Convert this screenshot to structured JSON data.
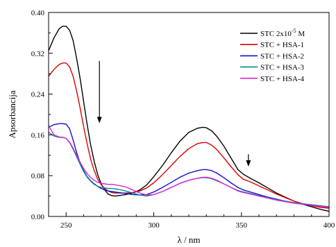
{
  "chart_data": {
    "type": "line",
    "xlabel": "λ / nm",
    "ylabel": "Apsorbancija",
    "xlim": [
      240,
      400
    ],
    "ylim": [
      0.0,
      0.4
    ],
    "xticks": [
      250,
      300,
      350,
      400
    ],
    "xtick_labels": [
      "250",
      "300",
      "350",
      "400"
    ],
    "yticks": [
      0.0,
      0.08,
      0.16,
      0.24,
      0.32,
      0.4
    ],
    "ytick_labels": [
      "0.00",
      "0.08",
      "0.16",
      "0.24",
      "0.32",
      "0.40"
    ],
    "grid": false,
    "legend_position": "top-right",
    "arrows": [
      {
        "x": 269,
        "y_from": 0.305,
        "y_to": 0.183,
        "direction": "down"
      },
      {
        "x": 354,
        "y_from": 0.122,
        "y_to": 0.098,
        "direction": "down"
      }
    ],
    "series": [
      {
        "name": "STC 2x10-5 M",
        "name_main": "STC 2x10",
        "name_sup": "-5",
        "name_tail": " M",
        "color": "#000000",
        "x": [
          240,
          243,
          246,
          248,
          250,
          252,
          254,
          256,
          258,
          260,
          262,
          264,
          266,
          268,
          270,
          272,
          274,
          276,
          278,
          280,
          284,
          288,
          292,
          296,
          300,
          305,
          310,
          315,
          320,
          325,
          328,
          330,
          333,
          336,
          340,
          344,
          348,
          351,
          355,
          360,
          365,
          370,
          375,
          380,
          385,
          390,
          395,
          400
        ],
        "y": [
          0.325,
          0.35,
          0.368,
          0.373,
          0.373,
          0.365,
          0.345,
          0.31,
          0.27,
          0.225,
          0.18,
          0.14,
          0.108,
          0.082,
          0.064,
          0.052,
          0.044,
          0.041,
          0.04,
          0.041,
          0.043,
          0.046,
          0.052,
          0.062,
          0.078,
          0.1,
          0.125,
          0.148,
          0.165,
          0.173,
          0.175,
          0.174,
          0.168,
          0.157,
          0.138,
          0.115,
          0.092,
          0.083,
          0.075,
          0.066,
          0.056,
          0.046,
          0.038,
          0.03,
          0.024,
          0.019,
          0.014,
          0.01
        ]
      },
      {
        "name": "STC + HSA-1",
        "color": "#e00000",
        "x": [
          240,
          243,
          246,
          248,
          250,
          252,
          254,
          256,
          258,
          260,
          262,
          264,
          266,
          268,
          270,
          272,
          274,
          276,
          278,
          280,
          284,
          288,
          292,
          296,
          300,
          305,
          310,
          315,
          320,
          325,
          328,
          330,
          333,
          336,
          340,
          344,
          348,
          351,
          355,
          360,
          365,
          370,
          375,
          380,
          385,
          390,
          395,
          400
        ],
        "y": [
          0.275,
          0.288,
          0.298,
          0.301,
          0.301,
          0.293,
          0.275,
          0.246,
          0.212,
          0.176,
          0.142,
          0.112,
          0.09,
          0.073,
          0.062,
          0.055,
          0.05,
          0.047,
          0.046,
          0.046,
          0.046,
          0.047,
          0.05,
          0.056,
          0.066,
          0.082,
          0.1,
          0.118,
          0.133,
          0.143,
          0.145,
          0.145,
          0.14,
          0.131,
          0.115,
          0.098,
          0.082,
          0.073,
          0.068,
          0.06,
          0.052,
          0.044,
          0.037,
          0.03,
          0.025,
          0.021,
          0.018,
          0.016
        ]
      },
      {
        "name": "STC + HSA-2",
        "color": "#1010cc",
        "x": [
          240,
          243,
          246,
          248,
          250,
          252,
          254,
          256,
          258,
          260,
          262,
          264,
          266,
          268,
          270,
          272,
          274,
          276,
          278,
          280,
          284,
          288,
          292,
          296,
          300,
          305,
          310,
          315,
          320,
          325,
          328,
          330,
          333,
          336,
          340,
          344,
          348,
          351,
          355,
          360,
          365,
          370,
          375,
          380,
          385,
          390,
          395,
          400
        ],
        "y": [
          0.175,
          0.18,
          0.182,
          0.182,
          0.181,
          0.172,
          0.15,
          0.125,
          0.105,
          0.09,
          0.078,
          0.07,
          0.064,
          0.059,
          0.055,
          0.052,
          0.05,
          0.049,
          0.048,
          0.047,
          0.045,
          0.043,
          0.042,
          0.043,
          0.048,
          0.057,
          0.067,
          0.077,
          0.085,
          0.09,
          0.092,
          0.092,
          0.09,
          0.085,
          0.076,
          0.066,
          0.057,
          0.052,
          0.048,
          0.043,
          0.038,
          0.034,
          0.03,
          0.027,
          0.024,
          0.022,
          0.02,
          0.018
        ]
      },
      {
        "name": "STC + HSA-3",
        "color": "#008b8b",
        "x": [
          240,
          243,
          246,
          248,
          250,
          252,
          254,
          256,
          258,
          260,
          262,
          264,
          266,
          268,
          270,
          272,
          274,
          276,
          278,
          280,
          284,
          288,
          292,
          296,
          300,
          305,
          310,
          315,
          320,
          325,
          328,
          330,
          333,
          336,
          340,
          344,
          348,
          351,
          355,
          360,
          365,
          370,
          375,
          380,
          385,
          390,
          395,
          400
        ],
        "y": [
          0.165,
          0.158,
          0.155,
          0.155,
          0.153,
          0.145,
          0.132,
          0.117,
          0.102,
          0.088,
          0.077,
          0.069,
          0.063,
          0.059,
          0.057,
          0.056,
          0.055,
          0.055,
          0.054,
          0.053,
          0.05,
          0.046,
          0.042,
          0.04,
          0.043,
          0.049,
          0.057,
          0.065,
          0.071,
          0.075,
          0.076,
          0.076,
          0.074,
          0.07,
          0.064,
          0.057,
          0.051,
          0.048,
          0.045,
          0.041,
          0.037,
          0.033,
          0.03,
          0.027,
          0.025,
          0.023,
          0.021,
          0.019
        ]
      },
      {
        "name": "STC + HSA-4",
        "color": "#e020e0",
        "x": [
          240,
          243,
          246,
          248,
          250,
          252,
          254,
          256,
          258,
          260,
          262,
          264,
          266,
          268,
          270,
          272,
          274,
          276,
          278,
          280,
          284,
          288,
          292,
          296,
          300,
          305,
          310,
          315,
          320,
          325,
          328,
          330,
          333,
          336,
          340,
          344,
          348,
          351,
          355,
          360,
          365,
          370,
          375,
          380,
          385,
          390,
          395,
          400
        ],
        "y": [
          0.178,
          0.16,
          0.156,
          0.155,
          0.153,
          0.146,
          0.134,
          0.12,
          0.106,
          0.094,
          0.084,
          0.076,
          0.071,
          0.067,
          0.065,
          0.064,
          0.063,
          0.063,
          0.062,
          0.061,
          0.058,
          0.052,
          0.046,
          0.042,
          0.043,
          0.049,
          0.057,
          0.065,
          0.071,
          0.075,
          0.077,
          0.077,
          0.075,
          0.071,
          0.064,
          0.057,
          0.05,
          0.047,
          0.044,
          0.04,
          0.036,
          0.032,
          0.029,
          0.026,
          0.024,
          0.022,
          0.02,
          0.018
        ]
      }
    ]
  }
}
